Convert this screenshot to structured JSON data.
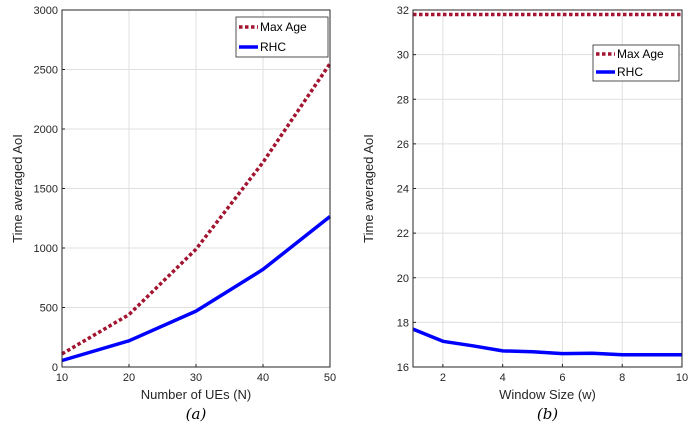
{
  "chart_data": [
    {
      "type": "line",
      "caption": "(a)",
      "xlabel": "Number of UEs (N)",
      "ylabel": "Time averaged AoI",
      "xlim": [
        10,
        50
      ],
      "ylim": [
        0,
        3000
      ],
      "xticks": [
        10,
        20,
        30,
        40,
        50
      ],
      "yticks": [
        0,
        500,
        1000,
        1500,
        2000,
        2500,
        3000
      ],
      "grid": true,
      "legend_position": "top-right",
      "series": [
        {
          "name": "Max Age",
          "color": "#A2142F",
          "style": "dotted",
          "x": [
            10,
            20,
            30,
            40,
            50
          ],
          "y": [
            110,
            440,
            990,
            1720,
            2550
          ]
        },
        {
          "name": "RHC",
          "color": "#0000FF",
          "style": "solid",
          "x": [
            10,
            20,
            30,
            40,
            50
          ],
          "y": [
            55,
            220,
            470,
            820,
            1265
          ]
        }
      ]
    },
    {
      "type": "line",
      "caption": "(b)",
      "xlabel": "Window Size (w)",
      "ylabel": "Time averaged AoI",
      "xlim": [
        1,
        10
      ],
      "ylim": [
        16,
        32
      ],
      "xticks": [
        2,
        4,
        6,
        8,
        10
      ],
      "yticks": [
        16,
        18,
        20,
        22,
        24,
        26,
        28,
        30,
        32
      ],
      "grid": true,
      "legend_position": "top-right",
      "series": [
        {
          "name": "Max Age",
          "color": "#A2142F",
          "style": "dotted",
          "x": [
            1,
            2,
            3,
            4,
            5,
            6,
            7,
            8,
            9,
            10
          ],
          "y": [
            31.8,
            31.8,
            31.8,
            31.8,
            31.8,
            31.8,
            31.8,
            31.8,
            31.8,
            31.8
          ]
        },
        {
          "name": "RHC",
          "color": "#0000FF",
          "style": "solid",
          "x": [
            1,
            2,
            3,
            4,
            5,
            6,
            7,
            8,
            9,
            10
          ],
          "y": [
            17.7,
            17.15,
            16.95,
            16.72,
            16.68,
            16.6,
            16.62,
            16.55,
            16.55,
            16.55
          ]
        }
      ]
    }
  ]
}
